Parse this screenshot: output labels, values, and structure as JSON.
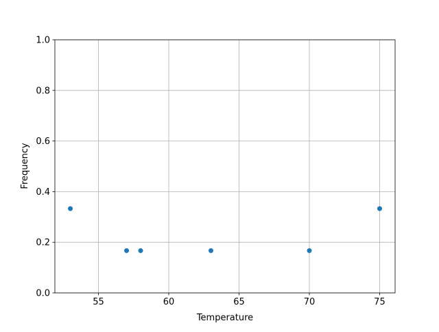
{
  "chart_data": {
    "type": "scatter",
    "title": "",
    "xlabel": "Temperature",
    "ylabel": "Frequency",
    "xlim": [
      51.9,
      76.1
    ],
    "ylim": [
      0.0,
      1.0
    ],
    "xticks": [
      55,
      60,
      65,
      70,
      75
    ],
    "xtick_labels": [
      "55",
      "60",
      "65",
      "70",
      "75"
    ],
    "yticks": [
      0.0,
      0.2,
      0.4,
      0.6,
      0.8,
      1.0
    ],
    "ytick_labels": [
      "0.0",
      "0.2",
      "0.4",
      "0.6",
      "0.8",
      "1.0"
    ],
    "grid": true,
    "color": "#1f77b4",
    "points": [
      {
        "x": 53,
        "y": 0.333
      },
      {
        "x": 57,
        "y": 0.167
      },
      {
        "x": 58,
        "y": 0.167
      },
      {
        "x": 63,
        "y": 0.167
      },
      {
        "x": 70,
        "y": 0.167
      },
      {
        "x": 75,
        "y": 0.333
      }
    ]
  }
}
